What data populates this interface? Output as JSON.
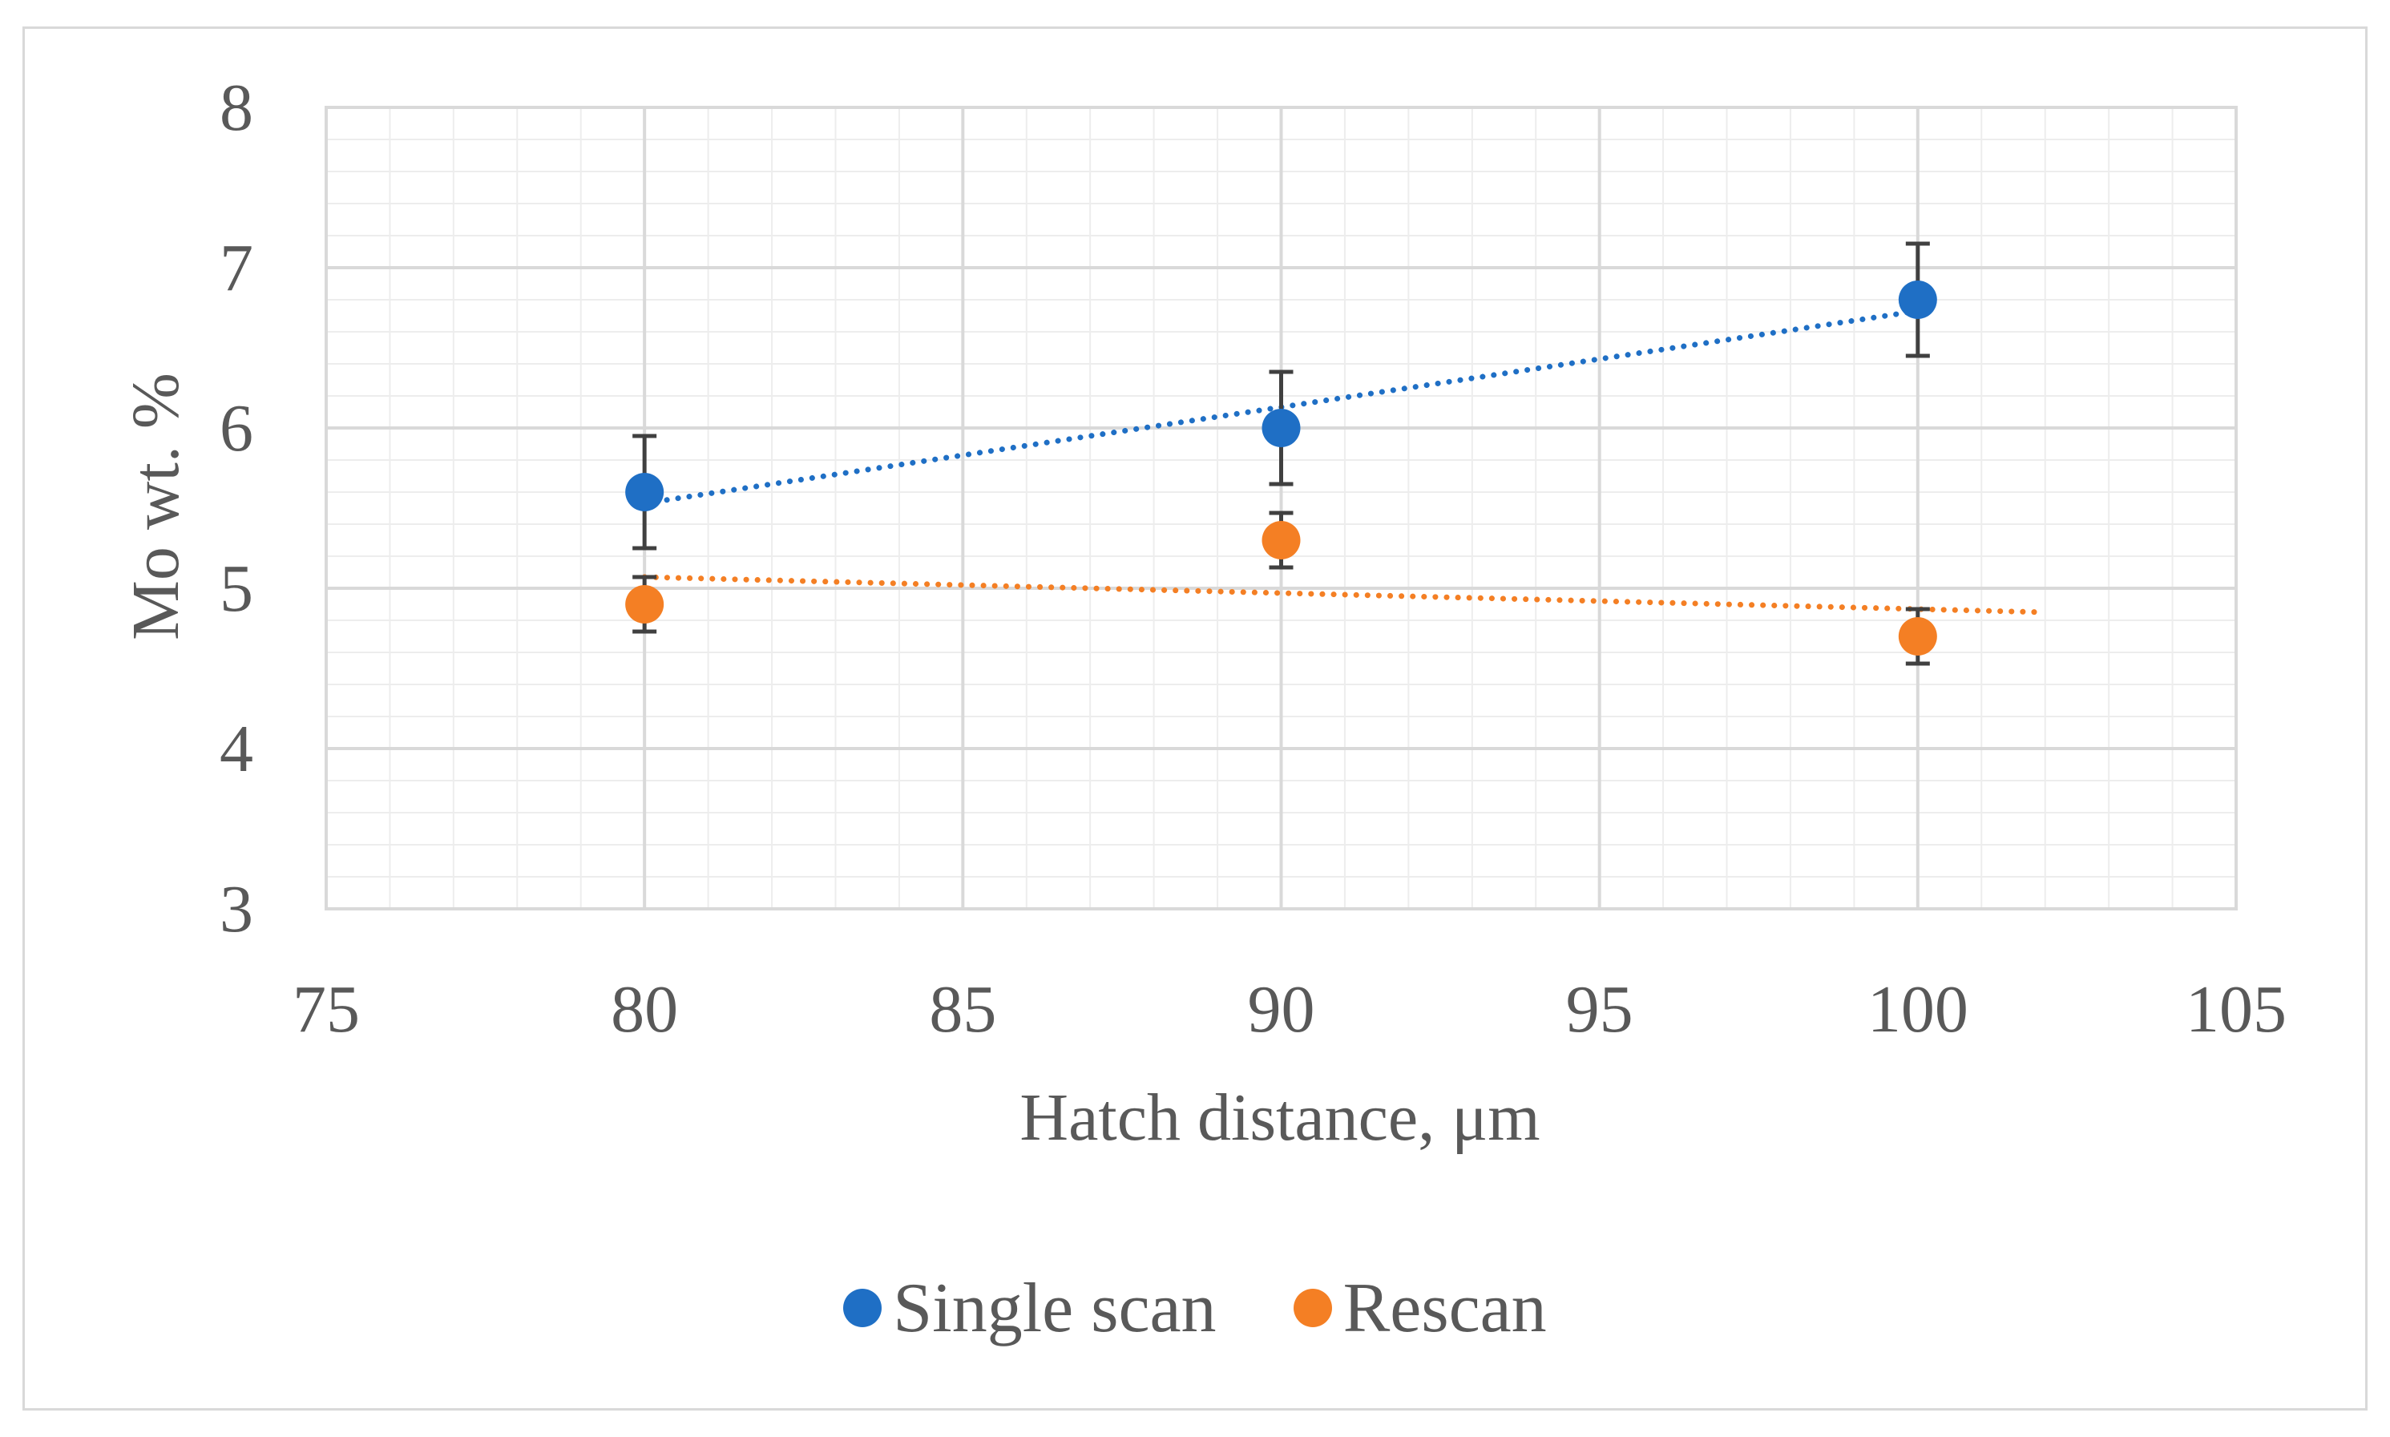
{
  "chart_data": {
    "type": "scatter",
    "title": "",
    "xlabel": "Hatch distance, μm",
    "ylabel": "Mo wt. %",
    "xlim": [
      75,
      105
    ],
    "ylim": [
      3,
      8
    ],
    "x_ticks": [
      "75",
      "80",
      "85",
      "90",
      "95",
      "100",
      "105"
    ],
    "y_ticks": [
      "3",
      "4",
      "5",
      "6",
      "7",
      "8"
    ],
    "grid": true,
    "legend_position": "bottom",
    "series": [
      {
        "name": "Single scan",
        "color": "#1f6fc5",
        "x": [
          80,
          90,
          100
        ],
        "y": [
          5.6,
          6.0,
          6.8
        ],
        "error": [
          0.35,
          0.35,
          0.35
        ],
        "trendline": {
          "x": [
            80,
            100
          ],
          "y": [
            5.53,
            6.73
          ],
          "style": "dotted"
        }
      },
      {
        "name": "Rescan",
        "color": "#f47f24",
        "x": [
          80,
          90,
          100
        ],
        "y": [
          4.9,
          5.3,
          4.7
        ],
        "error": [
          0.17,
          0.17,
          0.17
        ],
        "trendline": {
          "x": [
            80,
            102
          ],
          "y": [
            5.07,
            4.85
          ],
          "style": "dotted"
        }
      }
    ]
  }
}
